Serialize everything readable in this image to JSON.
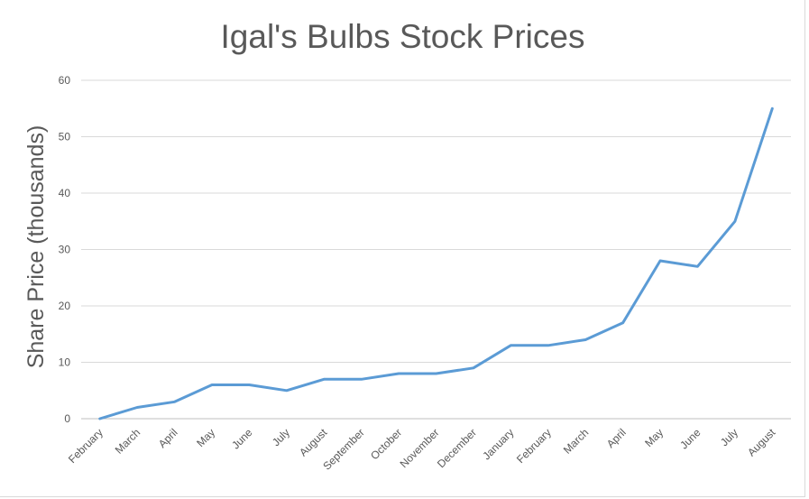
{
  "chart_data": {
    "type": "line",
    "title": "Igal's Bulbs Stock Prices",
    "xlabel": "",
    "ylabel": "Share Price (thousands)",
    "ylim": [
      0,
      60
    ],
    "yticks": [
      "0",
      "10",
      "20",
      "30",
      "40",
      "50",
      "60"
    ],
    "grid": true,
    "legend": "none",
    "line_color": "#5b9bd5",
    "categories": [
      "February",
      "March",
      "April",
      "May",
      "June",
      "July",
      "August",
      "September",
      "October",
      "November",
      "December",
      "January",
      "February",
      "March",
      "April",
      "May",
      "June",
      "July",
      "August"
    ],
    "series": [
      {
        "values": [
          0,
          2,
          3,
          6,
          6,
          5,
          7,
          7,
          8,
          8,
          9,
          13,
          13,
          14,
          17,
          28,
          27,
          35,
          55
        ]
      }
    ]
  }
}
